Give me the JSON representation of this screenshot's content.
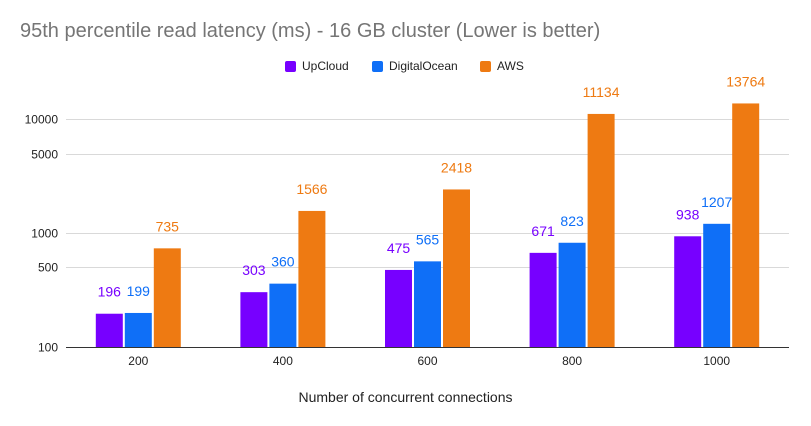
{
  "chart_data": {
    "type": "bar",
    "title": "95th percentile read latency (ms) - 16 GB cluster (Lower is better)",
    "xlabel": "Number of concurrent connections",
    "ylabel": "",
    "yscale": "log",
    "ylim": [
      100,
      17000
    ],
    "yticks": [
      100,
      500,
      1000,
      5000,
      10000
    ],
    "legend_position": "top-center",
    "grid": true,
    "categories": [
      "200",
      "400",
      "600",
      "800",
      "1000"
    ],
    "series": [
      {
        "name": "UpCloud",
        "color": "#7700ff",
        "values": [
          196,
          303,
          475,
          671,
          938
        ]
      },
      {
        "name": "DigitalOcean",
        "color": "#0f6ff7",
        "values": [
          199,
          360,
          565,
          823,
          1207
        ]
      },
      {
        "name": "AWS",
        "color": "#ee7a12",
        "values": [
          735,
          1566,
          2418,
          11134,
          13764
        ]
      }
    ]
  }
}
